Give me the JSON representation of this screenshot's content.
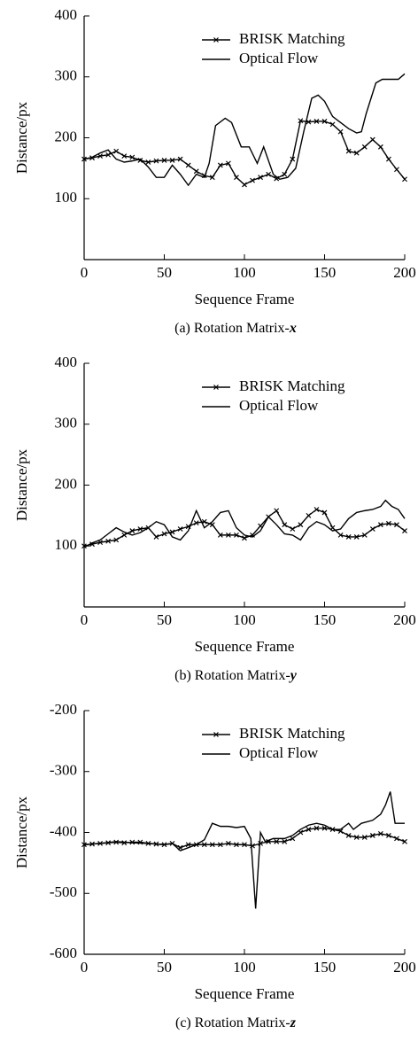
{
  "chart_data": [
    {
      "type": "line",
      "caption": "(a)   Rotation Matrix-",
      "caption_var": "x",
      "xlabel": "Sequence Frame",
      "ylabel": "Distance/px",
      "xlim": [
        0,
        200
      ],
      "xticks": [
        0,
        50,
        100,
        150,
        200
      ],
      "ylim": [
        0,
        400
      ],
      "yticks": [
        100,
        200,
        300,
        400
      ],
      "series": [
        {
          "name": "BRISK Matching",
          "color": "#000000",
          "marker": "x",
          "x": [
            0,
            5,
            10,
            15,
            20,
            25,
            30,
            35,
            40,
            45,
            50,
            55,
            60,
            65,
            70,
            75,
            80,
            85,
            90,
            95,
            100,
            105,
            110,
            115,
            120,
            125,
            130,
            135,
            140,
            145,
            150,
            155,
            160,
            165,
            170,
            175,
            180,
            185,
            190,
            195,
            200
          ],
          "values": [
            165,
            167,
            170,
            172,
            178,
            170,
            168,
            163,
            160,
            162,
            163,
            163,
            165,
            155,
            145,
            138,
            135,
            155,
            158,
            135,
            123,
            130,
            135,
            140,
            133,
            140,
            165,
            228,
            226,
            227,
            227,
            222,
            210,
            178,
            175,
            185,
            197,
            185,
            165,
            148,
            132
          ]
        },
        {
          "name": "Optical Flow",
          "color": "#000000",
          "x": [
            0,
            5,
            10,
            15,
            20,
            25,
            30,
            35,
            40,
            45,
            50,
            55,
            60,
            65,
            70,
            75,
            78,
            82,
            88,
            92,
            98,
            103,
            108,
            112,
            118,
            122,
            127,
            132,
            137,
            142,
            146,
            150,
            155,
            160,
            165,
            170,
            173,
            176,
            182,
            186,
            192,
            196,
            200
          ],
          "values": [
            165,
            168,
            175,
            180,
            165,
            160,
            162,
            165,
            152,
            135,
            135,
            155,
            140,
            122,
            140,
            135,
            158,
            220,
            232,
            225,
            185,
            185,
            158,
            185,
            140,
            132,
            135,
            150,
            210,
            265,
            270,
            260,
            235,
            225,
            215,
            208,
            210,
            240,
            290,
            296,
            296,
            296,
            305
          ]
        }
      ]
    },
    {
      "type": "line",
      "caption": "(b)   Rotation Matrix-",
      "caption_var": "y",
      "xlabel": "Sequence Frame",
      "ylabel": "Distance/px",
      "xlim": [
        0,
        200
      ],
      "xticks": [
        0,
        50,
        100,
        150,
        200
      ],
      "ylim": [
        0,
        400
      ],
      "yticks": [
        100,
        200,
        300,
        400
      ],
      "series": [
        {
          "name": "BRISK Matching",
          "color": "#000000",
          "marker": "x",
          "x": [
            0,
            5,
            10,
            15,
            20,
            25,
            30,
            35,
            40,
            45,
            50,
            55,
            60,
            65,
            70,
            75,
            80,
            85,
            90,
            95,
            100,
            105,
            110,
            115,
            120,
            125,
            130,
            135,
            140,
            145,
            150,
            155,
            160,
            165,
            170,
            175,
            180,
            185,
            190,
            195,
            200
          ],
          "values": [
            100,
            103,
            106,
            108,
            110,
            118,
            125,
            128,
            130,
            115,
            120,
            123,
            128,
            132,
            138,
            140,
            135,
            118,
            118,
            118,
            113,
            118,
            133,
            148,
            158,
            135,
            128,
            135,
            150,
            160,
            155,
            130,
            118,
            115,
            115,
            118,
            128,
            135,
            137,
            135,
            125
          ]
        },
        {
          "name": "Optical Flow",
          "color": "#000000",
          "x": [
            0,
            5,
            10,
            15,
            20,
            25,
            30,
            35,
            40,
            45,
            50,
            55,
            60,
            65,
            70,
            75,
            80,
            85,
            90,
            95,
            100,
            105,
            110,
            115,
            120,
            125,
            130,
            135,
            140,
            145,
            150,
            155,
            160,
            165,
            170,
            175,
            180,
            185,
            188,
            192,
            196,
            200
          ],
          "values": [
            98,
            105,
            110,
            120,
            130,
            123,
            118,
            122,
            130,
            140,
            135,
            115,
            110,
            125,
            158,
            130,
            140,
            155,
            158,
            130,
            118,
            115,
            125,
            148,
            135,
            120,
            118,
            110,
            130,
            140,
            135,
            125,
            128,
            145,
            155,
            158,
            160,
            165,
            175,
            165,
            160,
            145
          ]
        }
      ]
    },
    {
      "type": "line",
      "caption": "(c)   Rotation Matrix-",
      "caption_var": "z",
      "xlabel": "Sequence Frame",
      "ylabel": "Distance/px",
      "xlim": [
        0,
        200
      ],
      "xticks": [
        0,
        50,
        100,
        150,
        200
      ],
      "ylim": [
        -600,
        -200
      ],
      "yticks": [
        -600,
        -500,
        -400,
        -300,
        -200
      ],
      "series": [
        {
          "name": "BRISK Matching",
          "color": "#000000",
          "marker": "x",
          "x": [
            0,
            5,
            10,
            15,
            20,
            25,
            30,
            35,
            40,
            45,
            50,
            55,
            60,
            65,
            70,
            75,
            80,
            85,
            90,
            95,
            100,
            105,
            110,
            115,
            120,
            125,
            130,
            135,
            140,
            145,
            150,
            155,
            160,
            165,
            170,
            175,
            180,
            185,
            190,
            195,
            200
          ],
          "values": [
            -420,
            -419,
            -418,
            -417,
            -416,
            -417,
            -416,
            -416,
            -418,
            -419,
            -420,
            -418,
            -425,
            -420,
            -420,
            -420,
            -420,
            -420,
            -418,
            -420,
            -420,
            -422,
            -418,
            -415,
            -415,
            -415,
            -410,
            -400,
            -395,
            -393,
            -393,
            -395,
            -398,
            -405,
            -408,
            -408,
            -405,
            -402,
            -405,
            -410,
            -415
          ]
        },
        {
          "name": "Optical Flow",
          "color": "#000000",
          "x": [
            0,
            10,
            20,
            30,
            40,
            50,
            55,
            60,
            65,
            70,
            75,
            80,
            85,
            90,
            95,
            100,
            104,
            107,
            110,
            113,
            118,
            125,
            130,
            135,
            140,
            145,
            150,
            155,
            160,
            165,
            168,
            173,
            180,
            185,
            188,
            191,
            194,
            200
          ],
          "values": [
            -420,
            -418,
            -415,
            -417,
            -418,
            -420,
            -418,
            -430,
            -425,
            -420,
            -412,
            -385,
            -390,
            -390,
            -392,
            -390,
            -410,
            -525,
            -400,
            -415,
            -410,
            -410,
            -405,
            -395,
            -388,
            -385,
            -388,
            -395,
            -395,
            -385,
            -395,
            -385,
            -380,
            -370,
            -355,
            -333,
            -385,
            -385
          ]
        }
      ]
    }
  ]
}
